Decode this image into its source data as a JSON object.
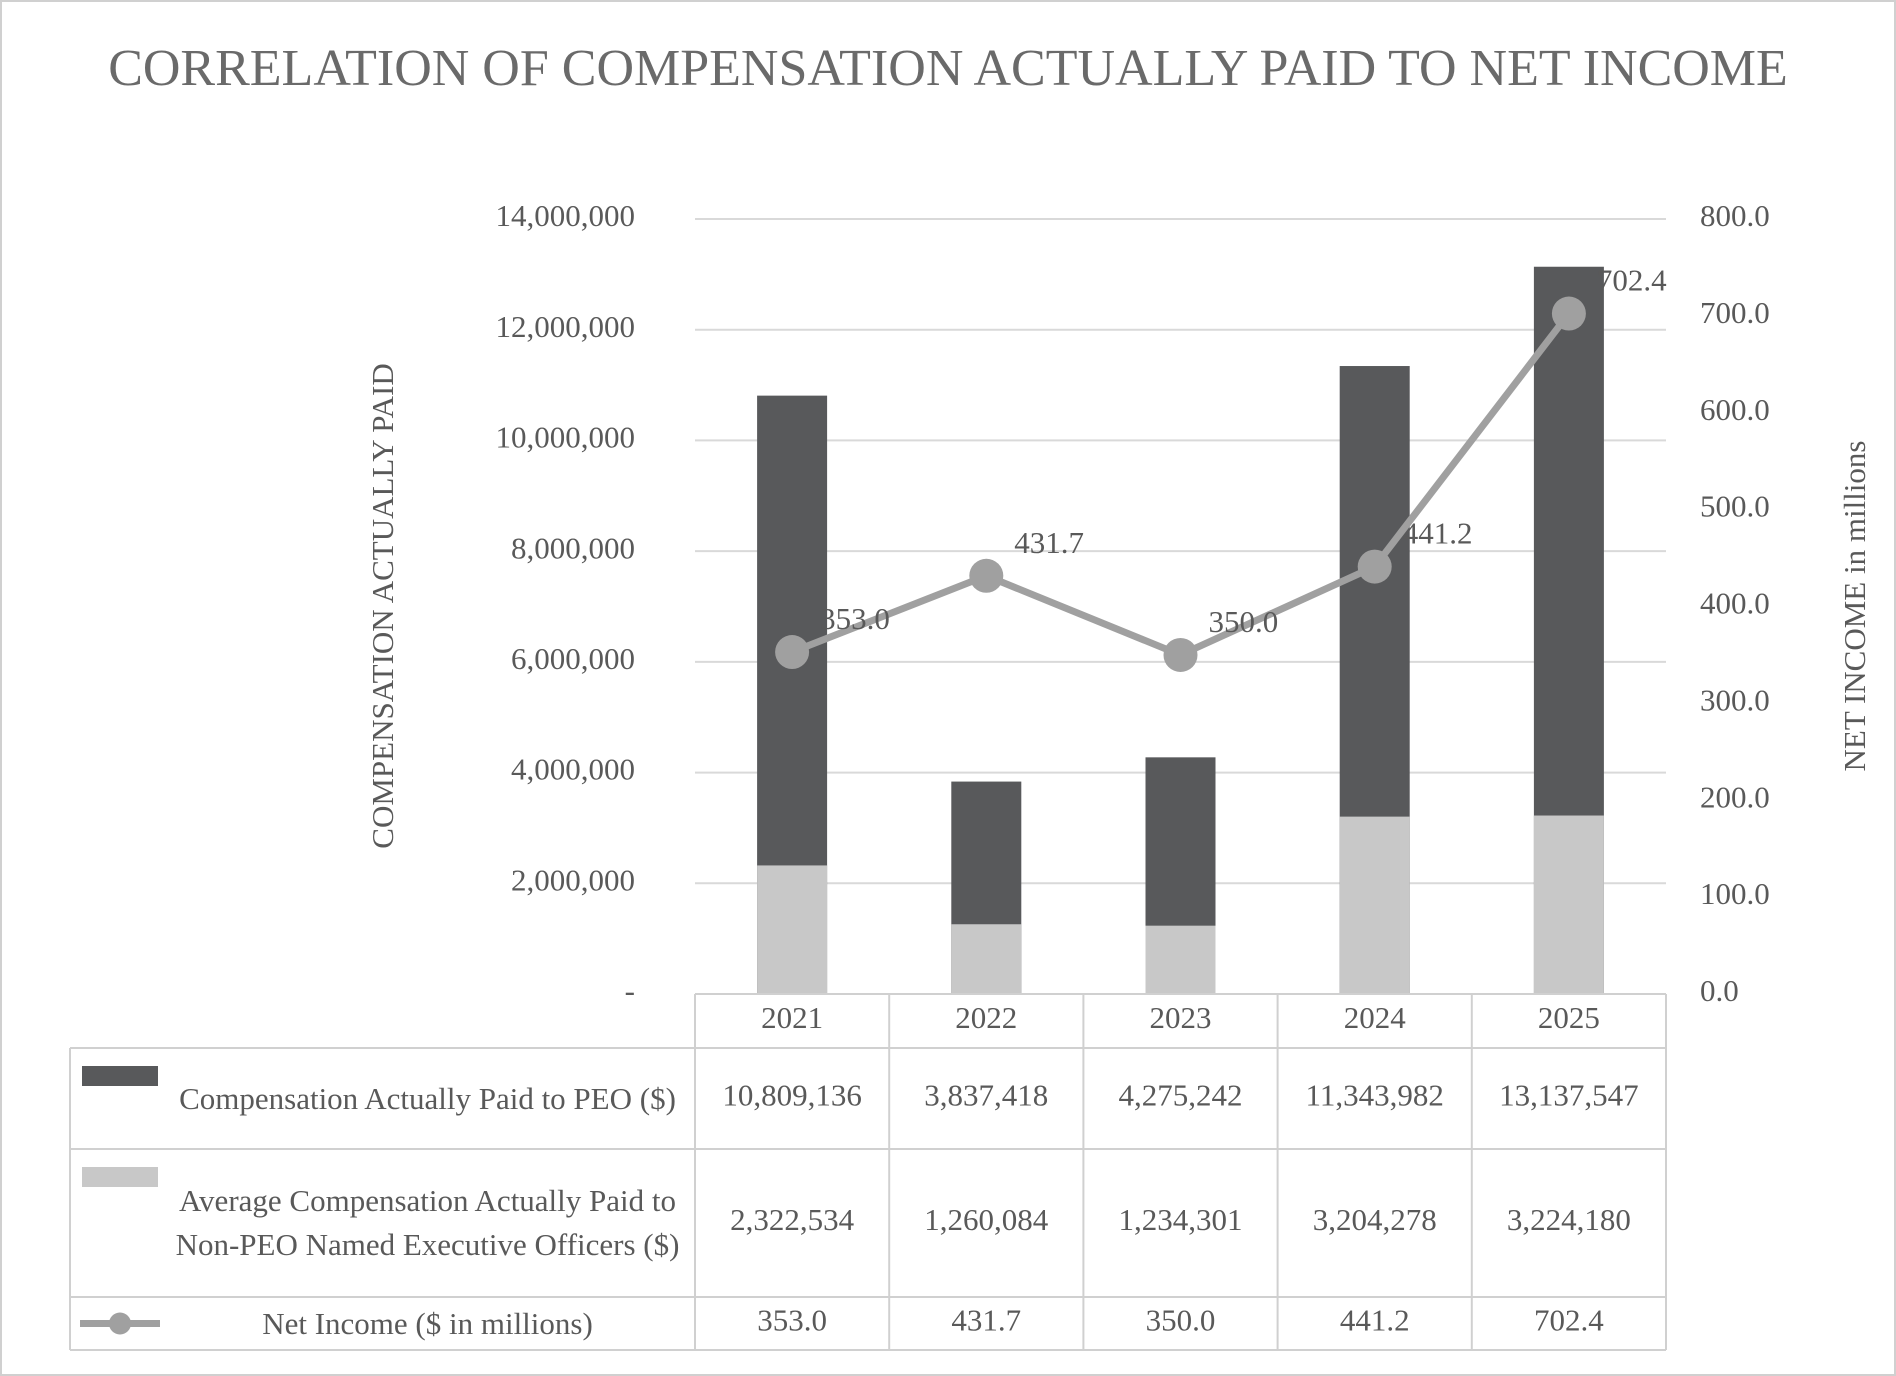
{
  "chart_data": {
    "type": "bar-line",
    "title": "CORRELATION OF COMPENSATION ACTUALLY PAID TO NET INCOME",
    "y_label": "COMPENSATION ACTUALLY PAID",
    "y2_label": "NET INCOME in millions",
    "categories": [
      "2021",
      "2022",
      "2023",
      "2024",
      "2025"
    ],
    "series": [
      {
        "name": "Compensation Actually Paid to PEO ($)",
        "type": "bar",
        "color": "#58595b",
        "values": [
          10809136,
          3837418,
          4275242,
          11343982,
          13137547
        ],
        "value_labels": [
          "10,809,136",
          "3,837,418",
          "4,275,242",
          "11,343,982",
          "13,137,547"
        ]
      },
      {
        "name": "Average Compensation Actually Paid to Non-PEO Named Executive Officers ($)",
        "type": "bar",
        "color": "#c8c8c8",
        "values": [
          2322534,
          1260084,
          1234301,
          3204278,
          3224180
        ],
        "value_labels": [
          "2,322,534",
          "1,260,084",
          "1,234,301",
          "3,204,278",
          "3,224,180"
        ]
      },
      {
        "name": "Net Income ($ in millions)",
        "type": "line",
        "axis": "y2",
        "color": "#a0a0a0",
        "values": [
          353.0,
          431.7,
          350.0,
          441.2,
          702.4
        ],
        "value_labels": [
          "353.0",
          "431.7",
          "350.0",
          "441.2",
          "702.4"
        ]
      }
    ],
    "ylim": [
      0,
      14000000
    ],
    "yticks": [
      {
        "value": 0,
        "label": "-"
      },
      {
        "value": 2000000,
        "label": "2,000,000"
      },
      {
        "value": 4000000,
        "label": "4,000,000"
      },
      {
        "value": 6000000,
        "label": "6,000,000"
      },
      {
        "value": 8000000,
        "label": "8,000,000"
      },
      {
        "value": 10000000,
        "label": "10,000,000"
      },
      {
        "value": 12000000,
        "label": "12,000,000"
      },
      {
        "value": 14000000,
        "label": "14,000,000"
      }
    ],
    "y2lim": [
      0,
      800
    ],
    "y2ticks": [
      {
        "value": 0,
        "label": "0.0"
      },
      {
        "value": 100,
        "label": "100.0"
      },
      {
        "value": 200,
        "label": "200.0"
      },
      {
        "value": 300,
        "label": "300.0"
      },
      {
        "value": 400,
        "label": "400.0"
      },
      {
        "value": 500,
        "label": "500.0"
      },
      {
        "value": 600,
        "label": "600.0"
      },
      {
        "value": 700,
        "label": "700.0"
      },
      {
        "value": 800,
        "label": "800.0"
      }
    ],
    "grid": true
  }
}
